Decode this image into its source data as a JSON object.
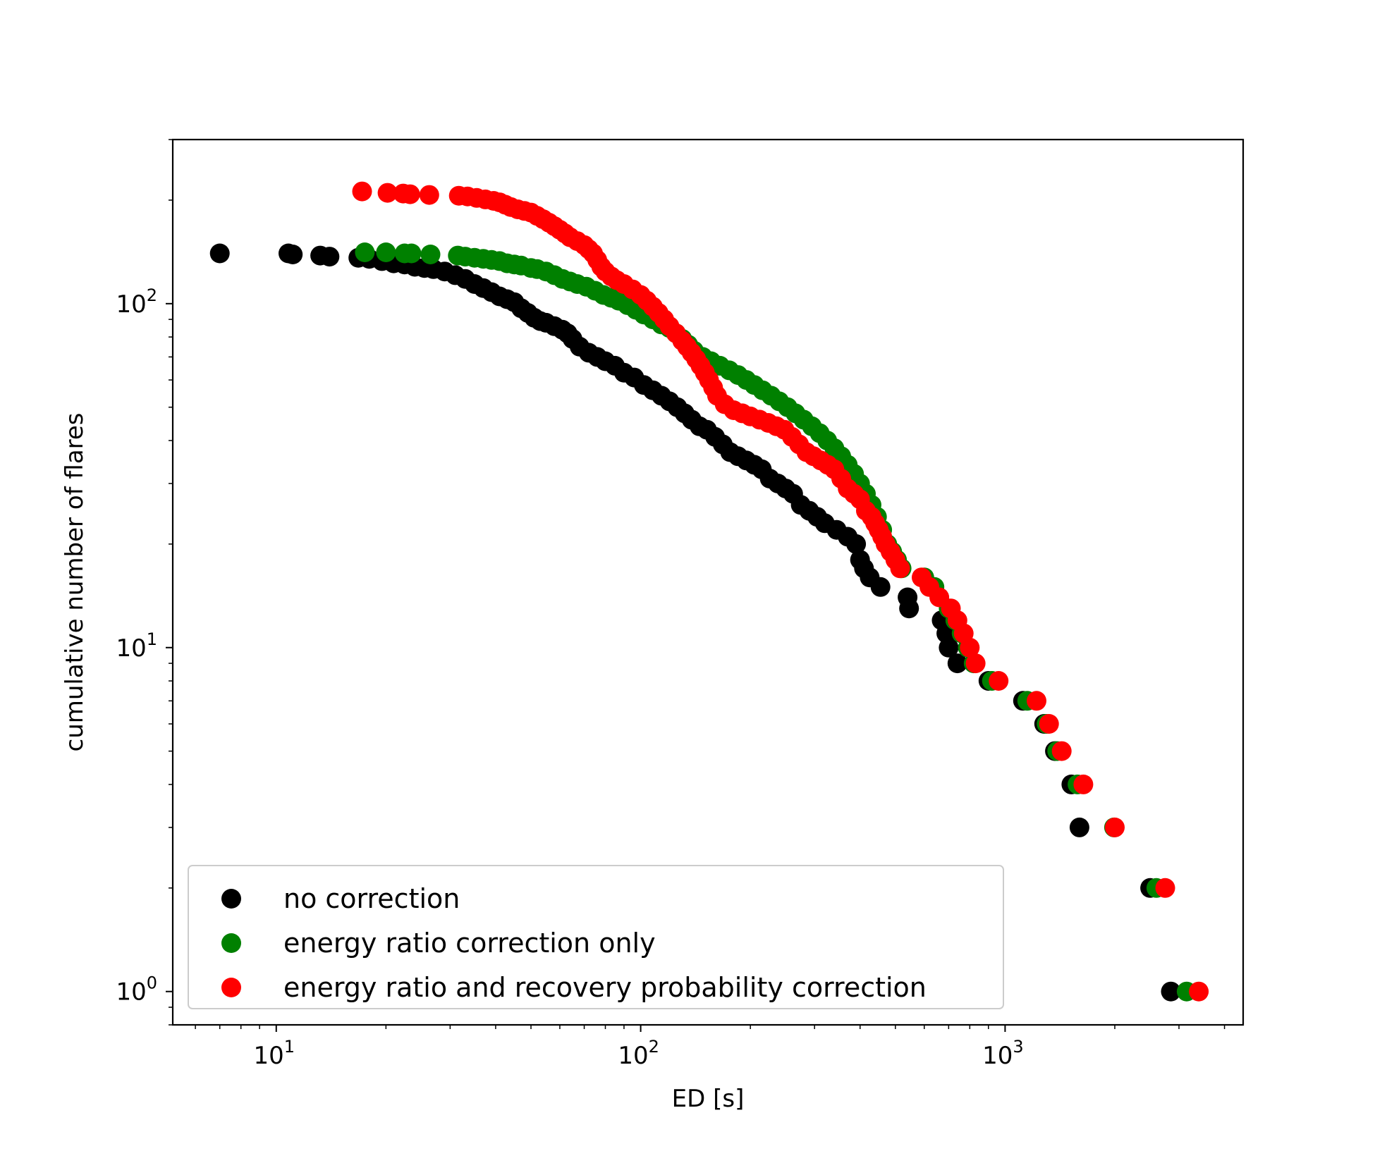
{
  "chart_data": {
    "type": "scatter",
    "title": "",
    "xlabel": "ED [s]",
    "ylabel": "cumulative number of flares",
    "xscale": "log",
    "yscale": "log",
    "xlim": [
      5.2,
      4500
    ],
    "ylim": [
      0.8,
      300
    ],
    "grid": false,
    "legend_position": "lower-left",
    "x_ticks": [
      {
        "value": 10,
        "base": "10",
        "exp": "1"
      },
      {
        "value": 100,
        "base": "10",
        "exp": "2"
      },
      {
        "value": 1000,
        "base": "10",
        "exp": "3"
      }
    ],
    "y_ticks": [
      {
        "value": 1,
        "base": "10",
        "exp": "0"
      },
      {
        "value": 10,
        "base": "10",
        "exp": "1"
      },
      {
        "value": 100,
        "base": "10",
        "exp": "2"
      }
    ],
    "series": [
      {
        "name": "no correction",
        "color": "#000000",
        "points": [
          [
            7.0,
            140
          ],
          [
            10.8,
            140
          ],
          [
            11.1,
            139
          ],
          [
            13.2,
            138
          ],
          [
            14.0,
            137
          ],
          [
            16.8,
            136
          ],
          [
            18.0,
            135
          ],
          [
            19.5,
            133
          ],
          [
            21,
            131
          ],
          [
            22.5,
            130
          ],
          [
            24,
            128
          ],
          [
            25.5,
            127
          ],
          [
            27,
            126
          ],
          [
            29,
            124
          ],
          [
            31,
            121
          ],
          [
            33,
            118
          ],
          [
            35,
            114
          ],
          [
            37,
            111
          ],
          [
            39,
            108
          ],
          [
            41,
            105
          ],
          [
            43,
            103
          ],
          [
            45,
            101
          ],
          [
            47,
            97
          ],
          [
            49,
            94
          ],
          [
            51,
            91
          ],
          [
            53,
            89
          ],
          [
            55,
            88
          ],
          [
            58,
            86
          ],
          [
            61,
            84
          ],
          [
            63,
            82
          ],
          [
            65,
            79
          ],
          [
            68,
            75
          ],
          [
            72,
            72
          ],
          [
            76,
            70
          ],
          [
            80,
            68
          ],
          [
            85,
            66
          ],
          [
            90,
            63
          ],
          [
            96,
            61
          ],
          [
            102,
            58
          ],
          [
            108,
            56
          ],
          [
            114,
            54
          ],
          [
            120,
            52
          ],
          [
            126,
            50
          ],
          [
            132,
            48
          ],
          [
            138,
            46
          ],
          [
            145,
            44
          ],
          [
            152,
            43
          ],
          [
            160,
            41
          ],
          [
            168,
            39
          ],
          [
            176,
            37
          ],
          [
            185,
            36
          ],
          [
            195,
            35
          ],
          [
            205,
            34
          ],
          [
            215,
            33
          ],
          [
            226,
            31
          ],
          [
            238,
            30
          ],
          [
            250,
            29
          ],
          [
            262,
            28
          ],
          [
            275,
            26
          ],
          [
            290,
            25
          ],
          [
            305,
            24
          ],
          [
            320,
            23
          ],
          [
            345,
            22
          ],
          [
            370,
            21
          ],
          [
            390,
            20
          ],
          [
            400,
            18
          ],
          [
            410,
            17
          ],
          [
            425,
            16
          ],
          [
            455,
            15
          ],
          [
            540,
            14
          ],
          [
            545,
            13
          ],
          [
            670,
            12
          ],
          [
            690,
            11
          ],
          [
            700,
            10
          ],
          [
            740,
            9
          ],
          [
            900,
            8
          ],
          [
            1120,
            7
          ],
          [
            1280,
            6
          ],
          [
            1370,
            5
          ],
          [
            1520,
            4
          ],
          [
            1600,
            3
          ],
          [
            2500,
            2
          ],
          [
            2850,
            1
          ]
        ]
      },
      {
        "name": "energy ratio correction only",
        "color": "#008000",
        "points": [
          [
            17.5,
            141
          ],
          [
            20,
            141
          ],
          [
            22.5,
            140
          ],
          [
            23.5,
            140
          ],
          [
            26.5,
            139
          ],
          [
            31.5,
            138
          ],
          [
            33,
            137
          ],
          [
            35,
            136
          ],
          [
            37,
            135
          ],
          [
            39,
            134
          ],
          [
            41,
            133
          ],
          [
            43,
            131
          ],
          [
            45,
            130
          ],
          [
            47,
            129
          ],
          [
            50,
            127
          ],
          [
            52,
            126
          ],
          [
            55,
            124
          ],
          [
            58,
            121
          ],
          [
            61,
            118
          ],
          [
            64,
            116
          ],
          [
            67,
            114
          ],
          [
            71,
            112
          ],
          [
            75,
            109
          ],
          [
            79,
            106
          ],
          [
            83,
            104
          ],
          [
            87,
            102
          ],
          [
            92,
            99
          ],
          [
            97,
            96
          ],
          [
            102,
            93
          ],
          [
            108,
            90
          ],
          [
            114,
            87
          ],
          [
            120,
            85
          ],
          [
            125,
            82
          ],
          [
            130,
            79
          ],
          [
            135,
            76
          ],
          [
            140,
            73
          ],
          [
            148,
            70
          ],
          [
            156,
            68
          ],
          [
            165,
            66
          ],
          [
            175,
            64
          ],
          [
            185,
            62
          ],
          [
            195,
            60
          ],
          [
            205,
            58
          ],
          [
            216,
            56
          ],
          [
            228,
            54
          ],
          [
            240,
            52
          ],
          [
            253,
            50
          ],
          [
            266,
            48
          ],
          [
            280,
            46
          ],
          [
            295,
            44
          ],
          [
            310,
            42
          ],
          [
            325,
            40
          ],
          [
            340,
            38
          ],
          [
            355,
            36
          ],
          [
            370,
            34
          ],
          [
            385,
            32
          ],
          [
            400,
            30
          ],
          [
            415,
            28
          ],
          [
            430,
            26
          ],
          [
            445,
            24
          ],
          [
            460,
            22
          ],
          [
            475,
            20
          ],
          [
            490,
            19
          ],
          [
            505,
            18
          ],
          [
            520,
            17
          ],
          [
            600,
            16
          ],
          [
            640,
            15
          ],
          [
            700,
            13
          ],
          [
            730,
            12
          ],
          [
            760,
            11
          ],
          [
            790,
            10
          ],
          [
            820,
            9
          ],
          [
            920,
            8
          ],
          [
            1150,
            7
          ],
          [
            1300,
            6
          ],
          [
            1390,
            5
          ],
          [
            1580,
            4
          ],
          [
            1990,
            3
          ],
          [
            2600,
            2
          ],
          [
            3150,
            1
          ]
        ]
      },
      {
        "name": "energy ratio and recovery probability correction",
        "color": "#ff0000",
        "points": [
          [
            17.2,
            212
          ],
          [
            20.2,
            210
          ],
          [
            22.3,
            209
          ],
          [
            23.3,
            208
          ],
          [
            26.3,
            207
          ],
          [
            31.7,
            206
          ],
          [
            33.5,
            205
          ],
          [
            35.5,
            203
          ],
          [
            37.5,
            201
          ],
          [
            39.5,
            199
          ],
          [
            41,
            197
          ],
          [
            42.5,
            194
          ],
          [
            44,
            191
          ],
          [
            46,
            188
          ],
          [
            48,
            186
          ],
          [
            50,
            184
          ],
          [
            52,
            180
          ],
          [
            54,
            176
          ],
          [
            56,
            172
          ],
          [
            58,
            168
          ],
          [
            60,
            164
          ],
          [
            62,
            160
          ],
          [
            64,
            156
          ],
          [
            67,
            152
          ],
          [
            70,
            148
          ],
          [
            72,
            144
          ],
          [
            74,
            140
          ],
          [
            76,
            134
          ],
          [
            78,
            128
          ],
          [
            80,
            124
          ],
          [
            83,
            120
          ],
          [
            86,
            117
          ],
          [
            90,
            114
          ],
          [
            95,
            110
          ],
          [
            100,
            106
          ],
          [
            104,
            102
          ],
          [
            108,
            98
          ],
          [
            112,
            94
          ],
          [
            116,
            90
          ],
          [
            120,
            86
          ],
          [
            125,
            82
          ],
          [
            130,
            78
          ],
          [
            134,
            75
          ],
          [
            138,
            72
          ],
          [
            142,
            69
          ],
          [
            146,
            66
          ],
          [
            150,
            63
          ],
          [
            154,
            60
          ],
          [
            158,
            57
          ],
          [
            162,
            54
          ],
          [
            170,
            51
          ],
          [
            180,
            49
          ],
          [
            190,
            48
          ],
          [
            200,
            47
          ],
          [
            212,
            46
          ],
          [
            224,
            45
          ],
          [
            236,
            44
          ],
          [
            248,
            43
          ],
          [
            260,
            41
          ],
          [
            272,
            39
          ],
          [
            285,
            37
          ],
          [
            298,
            36
          ],
          [
            312,
            35
          ],
          [
            326,
            34
          ],
          [
            340,
            33
          ],
          [
            355,
            31
          ],
          [
            370,
            29
          ],
          [
            385,
            28
          ],
          [
            400,
            27
          ],
          [
            415,
            25
          ],
          [
            430,
            24
          ],
          [
            440,
            23
          ],
          [
            450,
            22
          ],
          [
            460,
            21
          ],
          [
            470,
            20
          ],
          [
            485,
            19
          ],
          [
            500,
            18
          ],
          [
            515,
            17
          ],
          [
            590,
            16
          ],
          [
            620,
            15
          ],
          [
            660,
            14
          ],
          [
            710,
            13
          ],
          [
            740,
            12
          ],
          [
            770,
            11
          ],
          [
            800,
            10
          ],
          [
            830,
            9
          ],
          [
            960,
            8
          ],
          [
            1220,
            7
          ],
          [
            1320,
            6
          ],
          [
            1430,
            5
          ],
          [
            1640,
            4
          ],
          [
            2000,
            3
          ],
          [
            2750,
            2
          ],
          [
            3400,
            1
          ]
        ]
      }
    ]
  }
}
